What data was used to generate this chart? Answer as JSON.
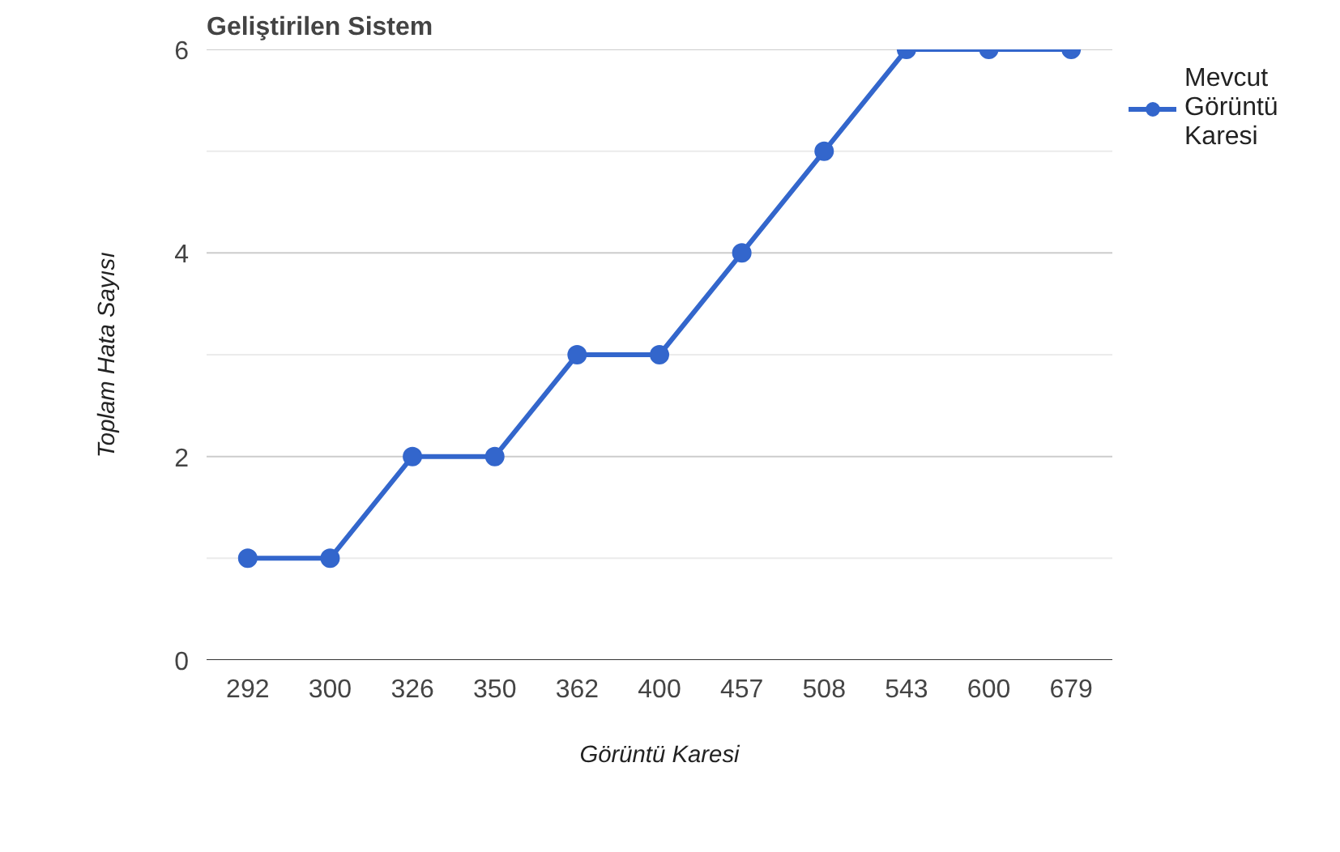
{
  "chart_data": {
    "type": "line",
    "title": "Geliştirilen Sistem",
    "xlabel": "Görüntü Karesi",
    "ylabel": "Toplam Hata Sayısı",
    "categories": [
      "292",
      "300",
      "326",
      "350",
      "362",
      "400",
      "457",
      "508",
      "543",
      "600",
      "679"
    ],
    "series": [
      {
        "name": "Mevcut\nGörüntü\nKaresi",
        "color": "#3366cc",
        "values": [
          1,
          1,
          2,
          2,
          3,
          3,
          4,
          5,
          6,
          6,
          6
        ]
      }
    ],
    "ylim": [
      0,
      6
    ],
    "yticks": [
      0,
      {
        "value": 1,
        "label": null
      },
      2,
      {
        "value": 3,
        "label": null
      },
      4,
      {
        "value": 5,
        "label": null
      },
      6
    ],
    "grid": "y",
    "legend": "top right",
    "marker": "circle",
    "line_style": "solid"
  }
}
